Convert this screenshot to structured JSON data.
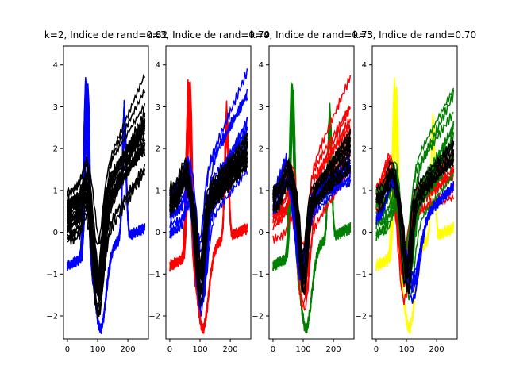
{
  "chart_data": {
    "type": "line",
    "ylim": [
      -2.55,
      4.45
    ],
    "xlim": [
      -13,
      268
    ],
    "xticks": [
      0,
      100,
      200
    ],
    "yticks": [
      -2,
      -1,
      0,
      1,
      2,
      3,
      4
    ],
    "grid": false,
    "panels": [
      {
        "title": "k=2, Indice de rand=0.82",
        "series": [
          {
            "color": "#0000ff",
            "role": "spiky",
            "count": 14
          },
          {
            "color": "#000000",
            "role": "normal",
            "count": 26
          }
        ]
      },
      {
        "title": "k=3, Indice de rand=0.79",
        "series": [
          {
            "color": "#ff0000",
            "role": "spiky",
            "count": 14
          },
          {
            "color": "#0000ff",
            "role": "normal",
            "count": 12
          },
          {
            "color": "#000000",
            "role": "deep",
            "count": 16
          }
        ]
      },
      {
        "title": "k=4, Indice de rand=0.73",
        "series": [
          {
            "color": "#008000",
            "role": "spiky",
            "count": 14
          },
          {
            "color": "#ff0000",
            "role": "normal",
            "count": 10
          },
          {
            "color": "#0000ff",
            "role": "early",
            "count": 10
          },
          {
            "color": "#000000",
            "role": "deep",
            "count": 14
          }
        ]
      },
      {
        "title": "k=5, Indice de rand=0.70",
        "series": [
          {
            "color": "#ffff00",
            "role": "spiky",
            "count": 10
          },
          {
            "color": "#ff0000",
            "role": "early",
            "count": 10
          },
          {
            "color": "#008000",
            "role": "normal",
            "count": 12
          },
          {
            "color": "#0000ff",
            "role": "mid",
            "count": 6
          },
          {
            "color": "#000000",
            "role": "deep",
            "count": 8
          }
        ]
      }
    ]
  }
}
